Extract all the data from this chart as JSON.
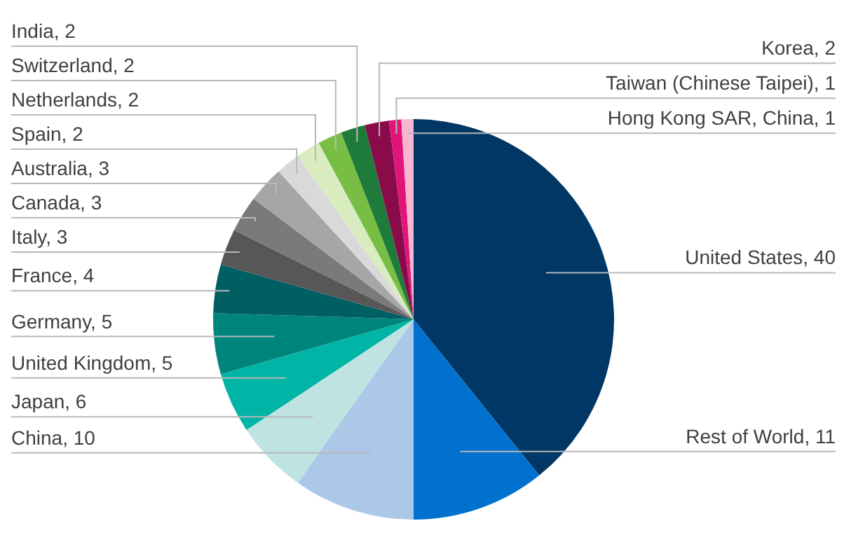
{
  "chart_data": {
    "type": "pie",
    "categories": [
      "United States, 40",
      "Rest of World, 11",
      "China, 10",
      "Japan, 6",
      "United Kingdom, 5",
      "Germany, 5",
      "France, 4",
      "Italy, 3",
      "Canada, 3",
      "Australia, 3",
      "Spain, 2",
      "Netherlands, 2",
      "Switzerland, 2",
      "India, 2",
      "Korea, 2",
      "Taiwan (Chinese Taipei), 1",
      "Hong Kong SAR, China, 1"
    ],
    "values": [
      40,
      11,
      10,
      6,
      5,
      5,
      4,
      3,
      3,
      3,
      2,
      2,
      2,
      2,
      2,
      1,
      1
    ],
    "colors": [
      "#003764",
      "#0071ce",
      "#abc8e9",
      "#bfe3e0",
      "#00b5a5",
      "#00857d",
      "#005f63",
      "#575757",
      "#7a7a7a",
      "#a6a6a6",
      "#d9d9d9",
      "#d8ecc0",
      "#78be45",
      "#1e7b3a",
      "#8a0b4a",
      "#e0157a",
      "#f7b6cf"
    ],
    "legend": false
  }
}
